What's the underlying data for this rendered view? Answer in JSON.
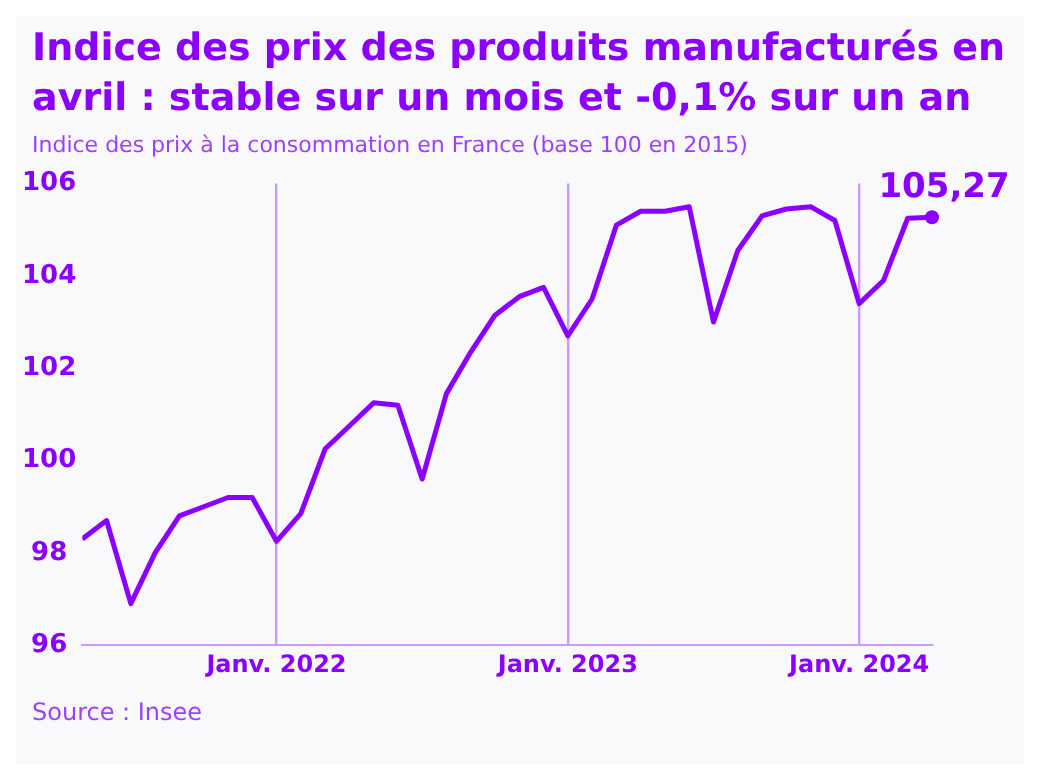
{
  "chart_data": {
    "type": "line",
    "title": "Indice des prix des produits manufacturés en avril : stable sur un mois et -0,1% sur un an",
    "subtitle": "Indice des prix à la consommation en France (base 100 en 2015)",
    "x": [
      "2021-05",
      "2021-06",
      "2021-07",
      "2021-08",
      "2021-09",
      "2021-10",
      "2021-11",
      "2021-12",
      "2022-01",
      "2022-02",
      "2022-03",
      "2022-04",
      "2022-05",
      "2022-06",
      "2022-07",
      "2022-08",
      "2022-09",
      "2022-10",
      "2022-11",
      "2022-12",
      "2023-01",
      "2023-02",
      "2023-03",
      "2023-04",
      "2023-05",
      "2023-06",
      "2023-07",
      "2023-08",
      "2023-09",
      "2023-10",
      "2023-11",
      "2023-12",
      "2024-01",
      "2024-02",
      "2024-03",
      "2024-04"
    ],
    "series": [
      {
        "color": "#8b00ff",
        "values": [
          98.3,
          98.7,
          96.9,
          98.0,
          98.8,
          99.0,
          99.2,
          99.2,
          98.25,
          98.85,
          100.25,
          100.75,
          101.25,
          101.2,
          99.6,
          101.45,
          102.35,
          103.15,
          103.55,
          103.75,
          102.7,
          103.5,
          105.1,
          105.4,
          105.4,
          105.5,
          103.0,
          104.55,
          105.3,
          105.45,
          105.5,
          105.2,
          103.4,
          103.9,
          105.25,
          105.27
        ]
      }
    ],
    "xlim": [
      "2021-05",
      "2024-04"
    ],
    "xticks": [
      {
        "value": "2022-01",
        "label": "Janv. 2022"
      },
      {
        "value": "2023-01",
        "label": "Janv. 2023"
      },
      {
        "value": "2024-01",
        "label": "Janv. 2024"
      }
    ],
    "ylim": [
      96,
      106
    ],
    "yticks": [
      96,
      98,
      100,
      102,
      104,
      106
    ],
    "grid": "x",
    "legend": false,
    "annotations": [
      {
        "text": "105,27",
        "x": "2024-04",
        "y": 105.27
      },
      "Source : Insee"
    ]
  }
}
